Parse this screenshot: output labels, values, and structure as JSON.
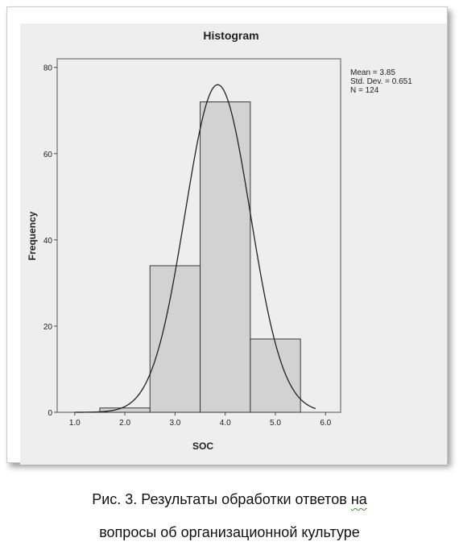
{
  "figure": {
    "caption_line1_a": "Рис. 3. Результаты обработки ответов ",
    "caption_line1_b": "на",
    "caption_line2": "вопросы об организационной  культуре"
  },
  "chart_data": {
    "type": "bar",
    "title": "Histogram",
    "xlabel": "SOC",
    "ylabel": "Frequency",
    "bins": [
      {
        "from": 1.5,
        "to": 2.5,
        "value": 1
      },
      {
        "from": 2.5,
        "to": 3.5,
        "value": 34
      },
      {
        "from": 3.5,
        "to": 4.5,
        "value": 72
      },
      {
        "from": 4.5,
        "to": 5.5,
        "value": 17
      }
    ],
    "x_ticks": [
      "1.0",
      "2.0",
      "3.0",
      "4.0",
      "5.0",
      "6.0"
    ],
    "y_ticks": [
      "0",
      "20",
      "40",
      "60",
      "80"
    ],
    "xlim": [
      0.65,
      6.3
    ],
    "ylim": [
      0,
      82
    ],
    "stats": {
      "mean_label": "Mean = 3.85",
      "sd_label": "Std. Dev. = 0.651",
      "n_label": "N = 124",
      "mean": 3.85,
      "std_dev": 0.651,
      "n": 124,
      "bin_width": 1
    },
    "normal_curve": true,
    "grid": false,
    "colors": {
      "bar_fill": "#d2d2d2",
      "bar_stroke": "#3a3a3a",
      "curve": "#222222",
      "plot_bg": "#eeeeee"
    }
  }
}
